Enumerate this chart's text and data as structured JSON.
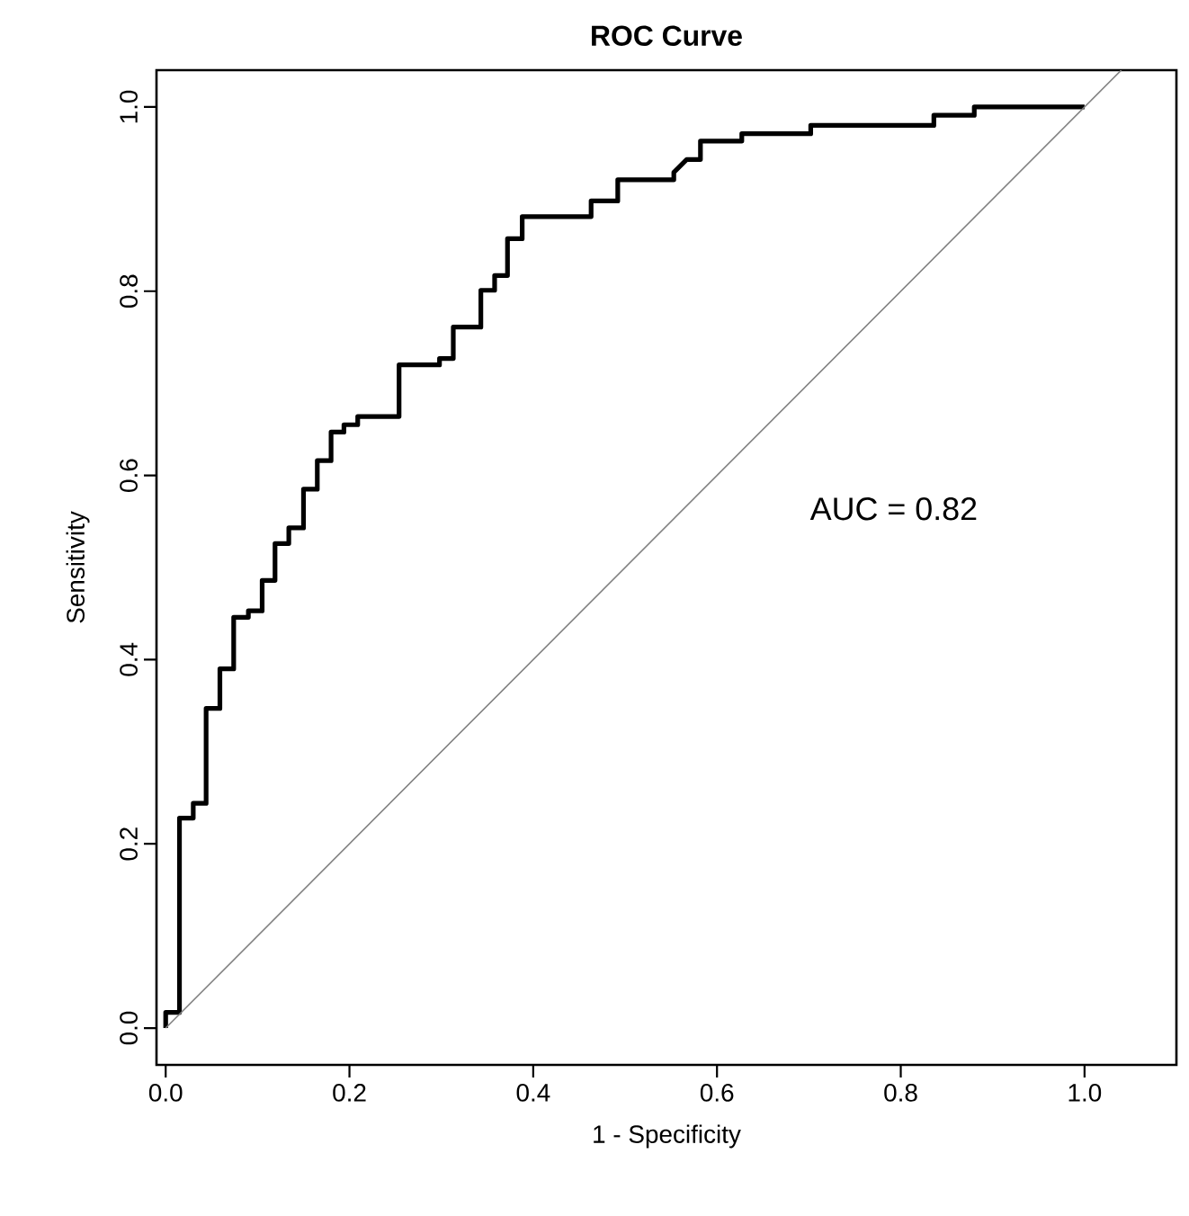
{
  "chart_data": {
    "type": "line",
    "title": "ROC Curve",
    "xlabel": "1 - Specificity",
    "ylabel": "Sensitivity",
    "xlim": [
      -0.01,
      1.1
    ],
    "ylim": [
      -0.04,
      1.04
    ],
    "xticks": [
      {
        "value": 0,
        "label": "0.0"
      },
      {
        "value": 0.2,
        "label": "0.2"
      },
      {
        "value": 0.4,
        "label": "0.4"
      },
      {
        "value": 0.6,
        "label": "0.6"
      },
      {
        "value": 0.8,
        "label": "0.8"
      },
      {
        "value": 1,
        "label": "1.0"
      }
    ],
    "yticks": [
      {
        "value": 0,
        "label": "0.0"
      },
      {
        "value": 0.2,
        "label": "0.2"
      },
      {
        "value": 0.4,
        "label": "0.4"
      },
      {
        "value": 0.6,
        "label": "0.6"
      },
      {
        "value": 0.8,
        "label": "0.8"
      },
      {
        "value": 1,
        "label": "1.0"
      }
    ],
    "series": [
      {
        "color": "#000000",
        "x": [
          0,
          0,
          0.015,
          0.015,
          0.03,
          0.03,
          0.044,
          0.044,
          0.059,
          0.059,
          0.074,
          0.074,
          0.09,
          0.09,
          0.105,
          0.105,
          0.119,
          0.119,
          0.134,
          0.134,
          0.15,
          0.15,
          0.165,
          0.165,
          0.18,
          0.18,
          0.194,
          0.194,
          0.209,
          0.209,
          0.254,
          0.254,
          0.298,
          0.298,
          0.313,
          0.313,
          0.343,
          0.343,
          0.358,
          0.358,
          0.372,
          0.372,
          0.388,
          0.388,
          0.463,
          0.463,
          0.492,
          0.492,
          0.553,
          0.553,
          0.567,
          0.582,
          0.582,
          0.627,
          0.627,
          0.702,
          0.702,
          0.836,
          0.836,
          0.88,
          0.88,
          1.0
        ],
        "values": [
          0,
          0.017,
          0.017,
          0.228,
          0.228,
          0.244,
          0.244,
          0.347,
          0.347,
          0.39,
          0.39,
          0.446,
          0.446,
          0.453,
          0.453,
          0.486,
          0.486,
          0.526,
          0.526,
          0.543,
          0.543,
          0.585,
          0.585,
          0.616,
          0.616,
          0.647,
          0.647,
          0.655,
          0.655,
          0.664,
          0.664,
          0.72,
          0.72,
          0.727,
          0.727,
          0.761,
          0.761,
          0.801,
          0.801,
          0.817,
          0.817,
          0.857,
          0.857,
          0.881,
          0.881,
          0.898,
          0.898,
          0.921,
          0.921,
          0.929,
          0.943,
          0.943,
          0.963,
          0.963,
          0.971,
          0.971,
          0.98,
          0.98,
          0.991,
          0.991,
          1.0,
          1.0
        ]
      },
      {
        "color": "#808080",
        "x": [
          0,
          1.04
        ],
        "values": [
          0,
          1.04
        ]
      }
    ],
    "annotations": [
      "AUC = 0.82"
    ],
    "grid": false
  }
}
